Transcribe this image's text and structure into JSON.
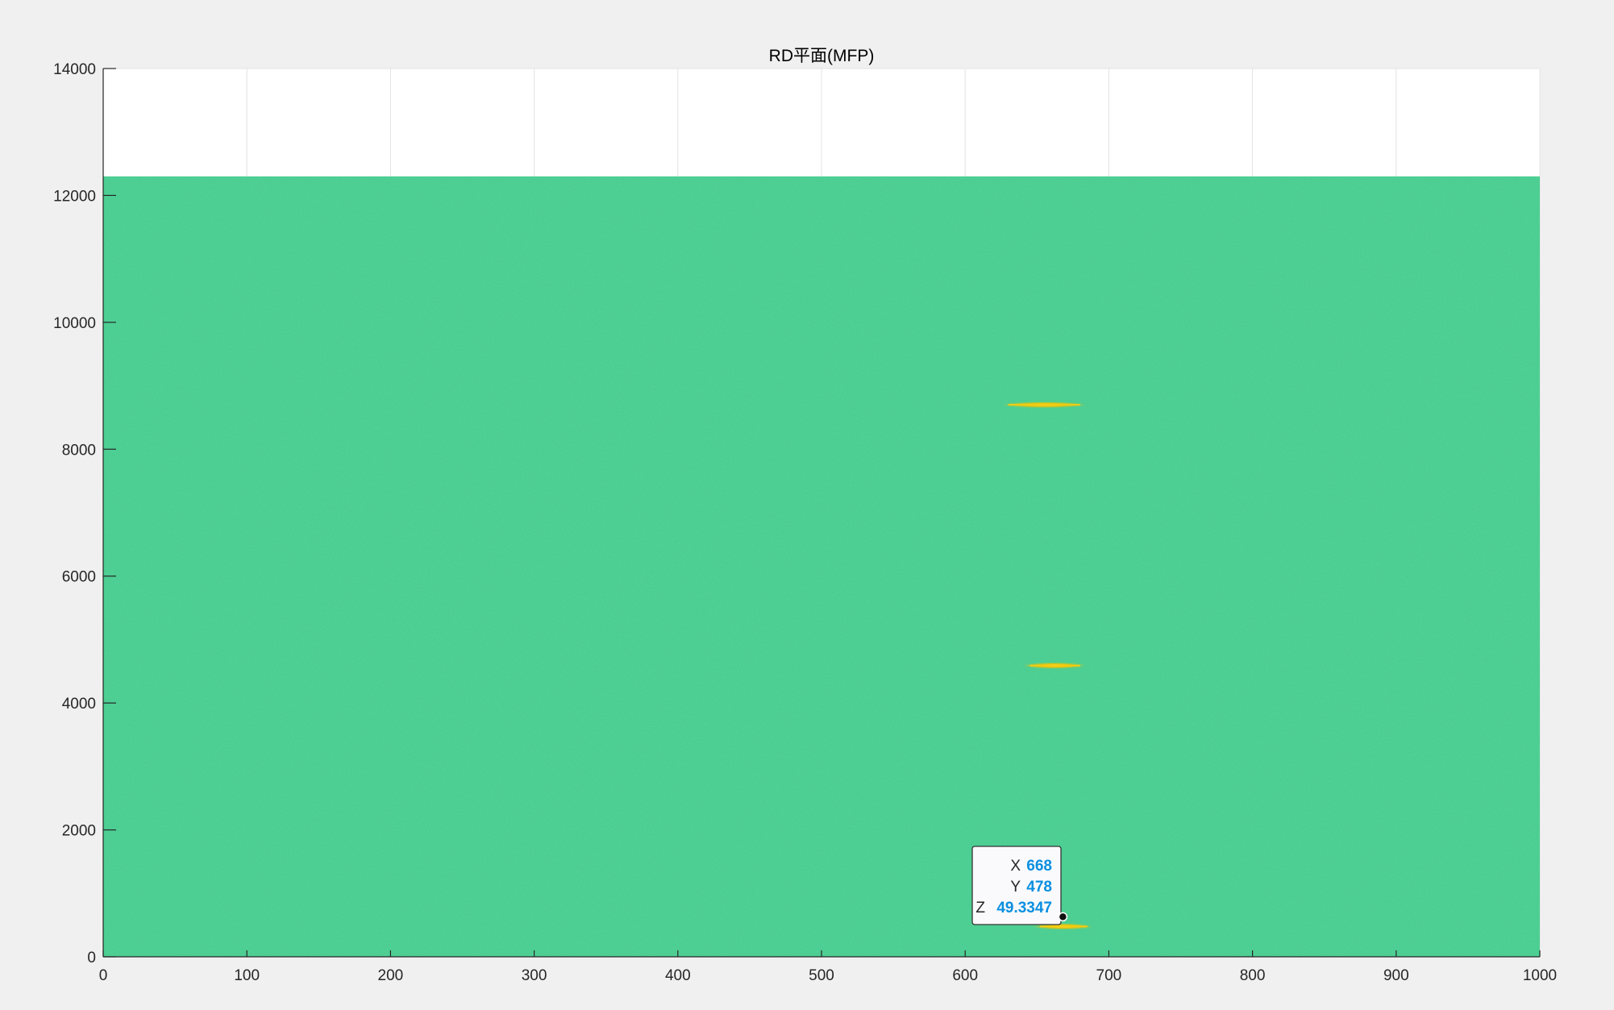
{
  "chart_data": {
    "type": "heatmap",
    "title": "RD平面(MFP)",
    "xlabel": "",
    "ylabel": "",
    "xlim": [
      0,
      1000
    ],
    "ylim": [
      0,
      14000
    ],
    "image_extent": {
      "x": [
        0,
        1000
      ],
      "y": [
        0,
        12300
      ]
    },
    "x_ticks": [
      0,
      100,
      200,
      300,
      400,
      500,
      600,
      700,
      800,
      900,
      1000
    ],
    "y_ticks": [
      0,
      2000,
      4000,
      6000,
      8000,
      10000,
      12000,
      14000
    ],
    "grid": true,
    "colors": {
      "background_field": "#3fc98a",
      "hotspot": "#f2c200",
      "figure_bg": "#f0f0f0"
    },
    "hotspots": [
      {
        "x": 655,
        "y": 8700,
        "x_span": [
          630,
          680
        ]
      },
      {
        "x": 662,
        "y": 4590,
        "x_span": [
          645,
          680
        ]
      },
      {
        "x": 668,
        "y": 478,
        "x_span": [
          652,
          685
        ]
      }
    ],
    "datatip": {
      "point": {
        "x": 668,
        "y": 478
      },
      "rows": [
        {
          "key": "X",
          "value": "668"
        },
        {
          "key": "Y",
          "value": "478"
        },
        {
          "key": "Z",
          "value": "49.3347"
        }
      ]
    }
  }
}
